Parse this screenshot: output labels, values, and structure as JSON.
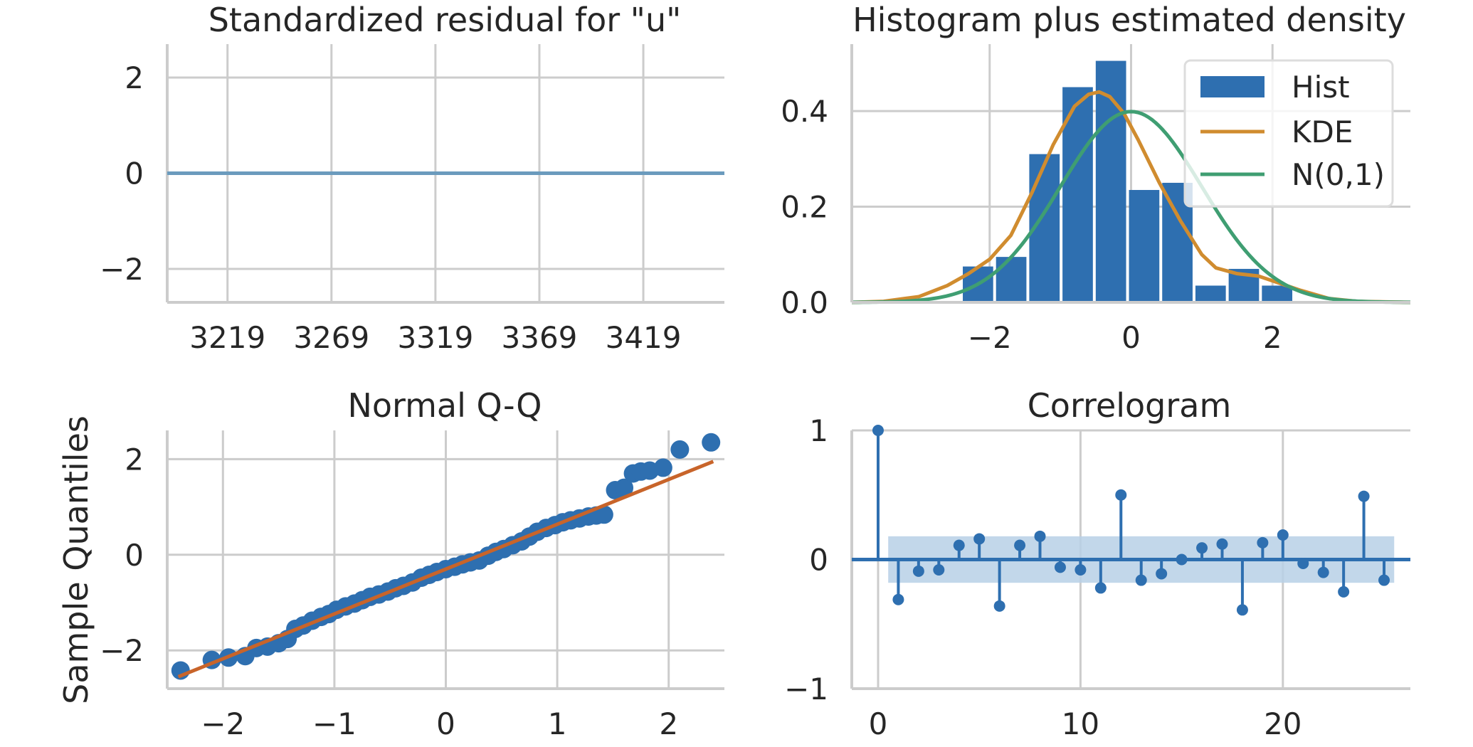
{
  "chart_data": [
    {
      "type": "line",
      "title": "Standardized residual for \"u\"",
      "xlabel": "",
      "ylabel": "",
      "xlim": [
        3190,
        3458
      ],
      "ylim": [
        -2.7,
        2.7
      ],
      "xticks": [
        3219,
        3269,
        3319,
        3369,
        3419
      ],
      "xtick_labels": [
        "3219",
        "3269",
        "3319",
        "3369",
        "3419"
      ],
      "yticks": [
        -2,
        0,
        2
      ],
      "ytick_labels": [
        "−2",
        "0",
        "2"
      ],
      "series": [
        {
          "x": [
            3190,
            3458
          ],
          "y": [
            0,
            0
          ],
          "color": "#6b9bbd"
        }
      ],
      "grid": true
    },
    {
      "type": "bar",
      "title": "Histogram plus estimated density",
      "xlabel": "",
      "ylabel": "",
      "xlim": [
        -3.95,
        3.95
      ],
      "ylim": [
        0,
        0.54
      ],
      "xticks": [
        -2,
        0,
        2
      ],
      "xtick_labels": [
        "−2",
        "0",
        "2"
      ],
      "yticks": [
        0.0,
        0.2,
        0.4
      ],
      "ytick_labels": [
        "0.0",
        "0.2",
        "0.4"
      ],
      "bin_edges": [
        -2.4,
        -1.93,
        -1.46,
        -0.99,
        -0.52,
        -0.05,
        0.42,
        0.89,
        1.36,
        1.83,
        2.3
      ],
      "bin_edges_split": [
        -2.4,
        -1.94,
        -1.46,
        -1.0,
        -0.52,
        -0.05,
        0.0,
        0.45,
        0.89,
        1.36,
        1.83,
        2.3
      ],
      "hist_values": [
        0.075,
        0.095,
        0.31,
        0.45,
        0.505,
        0.235,
        0.25,
        0.035,
        0.07,
        0.035
      ],
      "hist_color": "#2e6fb0",
      "kde": {
        "name": "KDE",
        "color": "#d08c2f",
        "x": [
          -3.95,
          -3.5,
          -3.0,
          -2.6,
          -2.3,
          -2.0,
          -1.7,
          -1.4,
          -1.1,
          -0.8,
          -0.6,
          -0.45,
          -0.3,
          -0.1,
          0.1,
          0.4,
          0.7,
          1.0,
          1.2,
          1.5,
          1.8,
          2.1,
          2.4,
          2.8,
          3.2,
          3.95
        ],
        "y": [
          0.0,
          0.002,
          0.012,
          0.035,
          0.06,
          0.09,
          0.14,
          0.23,
          0.33,
          0.41,
          0.435,
          0.44,
          0.43,
          0.395,
          0.34,
          0.25,
          0.17,
          0.1,
          0.072,
          0.06,
          0.055,
          0.04,
          0.025,
          0.008,
          0.002,
          0.0
        ]
      },
      "normal": {
        "name": "N(0,1)",
        "color": "#3f9e72",
        "mean": 0,
        "sd": 1
      },
      "legend": {
        "placement": "upper right",
        "items": [
          "Hist",
          "KDE",
          "N(0,1)"
        ]
      },
      "grid": true
    },
    {
      "type": "scatter",
      "title": "Normal Q-Q",
      "xlabel": "",
      "ylabel": "Sample Quantiles",
      "xlim": [
        -2.5,
        2.5
      ],
      "ylim": [
        -2.8,
        2.6
      ],
      "xticks": [
        -2,
        -1,
        0,
        1,
        2
      ],
      "xtick_labels": [
        "−2",
        "−1",
        "0",
        "1",
        "2"
      ],
      "yticks": [
        -2,
        0,
        2
      ],
      "ytick_labels": [
        "−2",
        "0",
        "2"
      ],
      "points_color": "#2e6fb0",
      "line_color": "#c8642a",
      "line": {
        "x": [
          -2.4,
          2.4
        ],
        "y": [
          -2.55,
          1.95
        ]
      },
      "points": [
        [
          -2.38,
          -2.42
        ],
        [
          -2.1,
          -2.2
        ],
        [
          -1.95,
          -2.15
        ],
        [
          -1.8,
          -2.12
        ],
        [
          -1.7,
          -1.95
        ],
        [
          -1.6,
          -1.92
        ],
        [
          -1.5,
          -1.85
        ],
        [
          -1.42,
          -1.76
        ],
        [
          -1.35,
          -1.55
        ],
        [
          -1.28,
          -1.48
        ],
        [
          -1.2,
          -1.38
        ],
        [
          -1.12,
          -1.3
        ],
        [
          -1.05,
          -1.24
        ],
        [
          -0.98,
          -1.15
        ],
        [
          -0.9,
          -1.08
        ],
        [
          -0.82,
          -1.02
        ],
        [
          -0.75,
          -0.95
        ],
        [
          -0.68,
          -0.88
        ],
        [
          -0.6,
          -0.83
        ],
        [
          -0.52,
          -0.77
        ],
        [
          -0.45,
          -0.7
        ],
        [
          -0.38,
          -0.65
        ],
        [
          -0.3,
          -0.58
        ],
        [
          -0.22,
          -0.48
        ],
        [
          -0.15,
          -0.42
        ],
        [
          -0.08,
          -0.36
        ],
        [
          0.0,
          -0.3
        ],
        [
          0.08,
          -0.25
        ],
        [
          0.15,
          -0.2
        ],
        [
          0.22,
          -0.16
        ],
        [
          0.3,
          -0.12
        ],
        [
          0.38,
          -0.02
        ],
        [
          0.45,
          0.06
        ],
        [
          0.52,
          0.12
        ],
        [
          0.6,
          0.2
        ],
        [
          0.68,
          0.28
        ],
        [
          0.75,
          0.38
        ],
        [
          0.82,
          0.48
        ],
        [
          0.9,
          0.56
        ],
        [
          0.98,
          0.62
        ],
        [
          1.05,
          0.68
        ],
        [
          1.12,
          0.72
        ],
        [
          1.2,
          0.76
        ],
        [
          1.28,
          0.8
        ],
        [
          1.35,
          0.82
        ],
        [
          1.42,
          0.84
        ],
        [
          1.52,
          1.35
        ],
        [
          1.6,
          1.4
        ],
        [
          1.68,
          1.7
        ],
        [
          1.75,
          1.74
        ],
        [
          1.83,
          1.76
        ],
        [
          1.95,
          1.82
        ],
        [
          2.1,
          2.2
        ],
        [
          2.38,
          2.35
        ]
      ],
      "grid": true
    },
    {
      "type": "stem",
      "title": "Correlogram",
      "xlabel": "",
      "ylabel": "",
      "xlim": [
        -1.3,
        26.3
      ],
      "ylim": [
        -1.0,
        1.0
      ],
      "xticks": [
        0,
        10,
        20
      ],
      "xtick_labels": [
        "0",
        "10",
        "20"
      ],
      "yticks": [
        -1,
        0,
        1
      ],
      "ytick_labels": [
        "−1",
        "0",
        "1"
      ],
      "color": "#2e6fb0",
      "band": {
        "lower": -0.18,
        "upper": 0.18,
        "x_start": 0.5,
        "x_end": 25.5,
        "color": "#b7d0e6"
      },
      "lags": [
        0,
        1,
        2,
        3,
        4,
        5,
        6,
        7,
        8,
        9,
        10,
        11,
        12,
        13,
        14,
        15,
        16,
        17,
        18,
        19,
        20,
        21,
        22,
        23,
        24,
        25
      ],
      "values": [
        1.0,
        -0.31,
        -0.09,
        -0.08,
        0.11,
        0.16,
        -0.36,
        0.11,
        0.18,
        -0.06,
        -0.08,
        -0.22,
        0.5,
        -0.16,
        -0.11,
        0.0,
        0.09,
        0.12,
        -0.39,
        0.13,
        0.19,
        -0.03,
        -0.1,
        -0.25,
        0.49,
        -0.16
      ],
      "grid": true
    }
  ]
}
